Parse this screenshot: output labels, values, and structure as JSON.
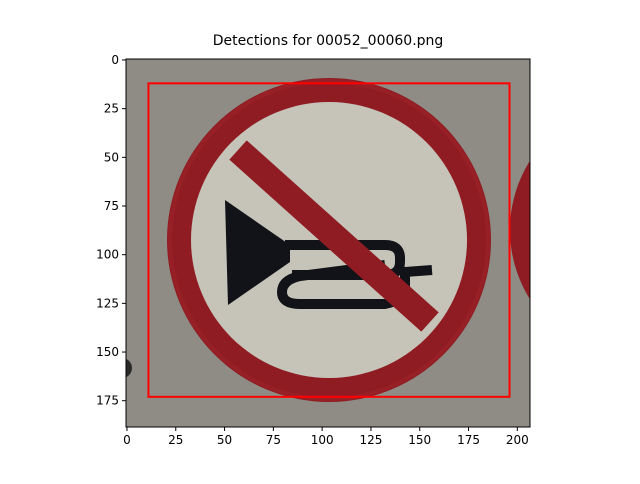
{
  "chart_data": {
    "type": "image",
    "title": "Detections for 00052_00060.png",
    "xlim": [
      -0.5,
      206.5
    ],
    "ylim": [
      188.5,
      -0.5
    ],
    "xticks": [
      0,
      25,
      50,
      75,
      100,
      125,
      150,
      175,
      200
    ],
    "yticks": [
      0,
      25,
      50,
      75,
      100,
      125,
      150,
      175
    ],
    "boxes": [
      {
        "x0": 11,
        "y0": 12,
        "x1": 196,
        "y1": 173,
        "color": "#ff0000"
      }
    ]
  }
}
